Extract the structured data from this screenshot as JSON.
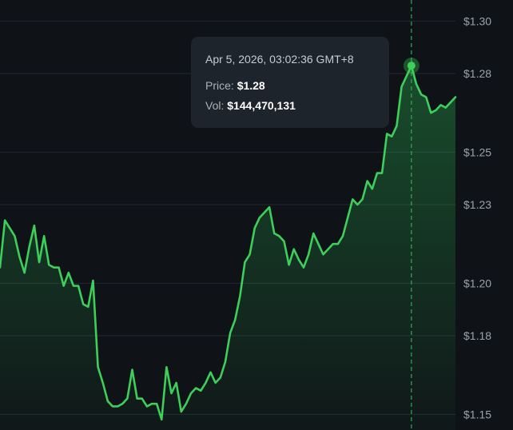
{
  "chart_data": {
    "type": "area",
    "title": "",
    "xlabel": "",
    "ylabel": "",
    "ylim": [
      1.144,
      1.305
    ],
    "ytick_values": [
      1.15,
      1.18,
      1.2,
      1.23,
      1.25,
      1.28,
      1.3
    ],
    "ytick_labels": [
      "$1.15",
      "$1.18",
      "$1.20",
      "$1.23",
      "$1.25",
      "$1.28",
      "$1.30"
    ],
    "grid": true,
    "series": [
      {
        "color": "#3ecf5a",
        "values": [
          1.206,
          1.224,
          1.221,
          1.218,
          1.21,
          1.204,
          1.214,
          1.222,
          1.208,
          1.218,
          1.207,
          1.206,
          1.206,
          1.199,
          1.204,
          1.199,
          1.199,
          1.192,
          1.191,
          1.201,
          1.168,
          1.162,
          1.155,
          1.153,
          1.153,
          1.154,
          1.156,
          1.167,
          1.156,
          1.156,
          1.153,
          1.154,
          1.154,
          1.148,
          1.168,
          1.158,
          1.162,
          1.151,
          1.154,
          1.158,
          1.16,
          1.159,
          1.162,
          1.166,
          1.162,
          1.164,
          1.17,
          1.181,
          1.186,
          1.195,
          1.208,
          1.211,
          1.221,
          1.225,
          1.227,
          1.229,
          1.219,
          1.218,
          1.216,
          1.207,
          1.213,
          1.209,
          1.206,
          1.211,
          1.219,
          1.215,
          1.211,
          1.213,
          1.215,
          1.215,
          1.218,
          1.225,
          1.232,
          1.23,
          1.232,
          1.239,
          1.236,
          1.242,
          1.242,
          1.257,
          1.256,
          1.26,
          1.275,
          1.279,
          1.283,
          1.276,
          1.272,
          1.271,
          1.265,
          1.266,
          1.268,
          1.267,
          1.269,
          1.271
        ]
      }
    ],
    "tooltip": {
      "datetime": "Apr 5, 2026, 03:02:36 GMT+8",
      "price_label": "Price:",
      "price_value": "$1.28",
      "vol_label": "Vol:",
      "vol_value": "$144,470,131",
      "point_index": 84
    }
  },
  "colors": {
    "background": "#0f1217",
    "grid": "#232a33",
    "line": "#3ecf5a",
    "crosshair": "#2fae4c",
    "tooltip_bg": "#1e242c"
  }
}
